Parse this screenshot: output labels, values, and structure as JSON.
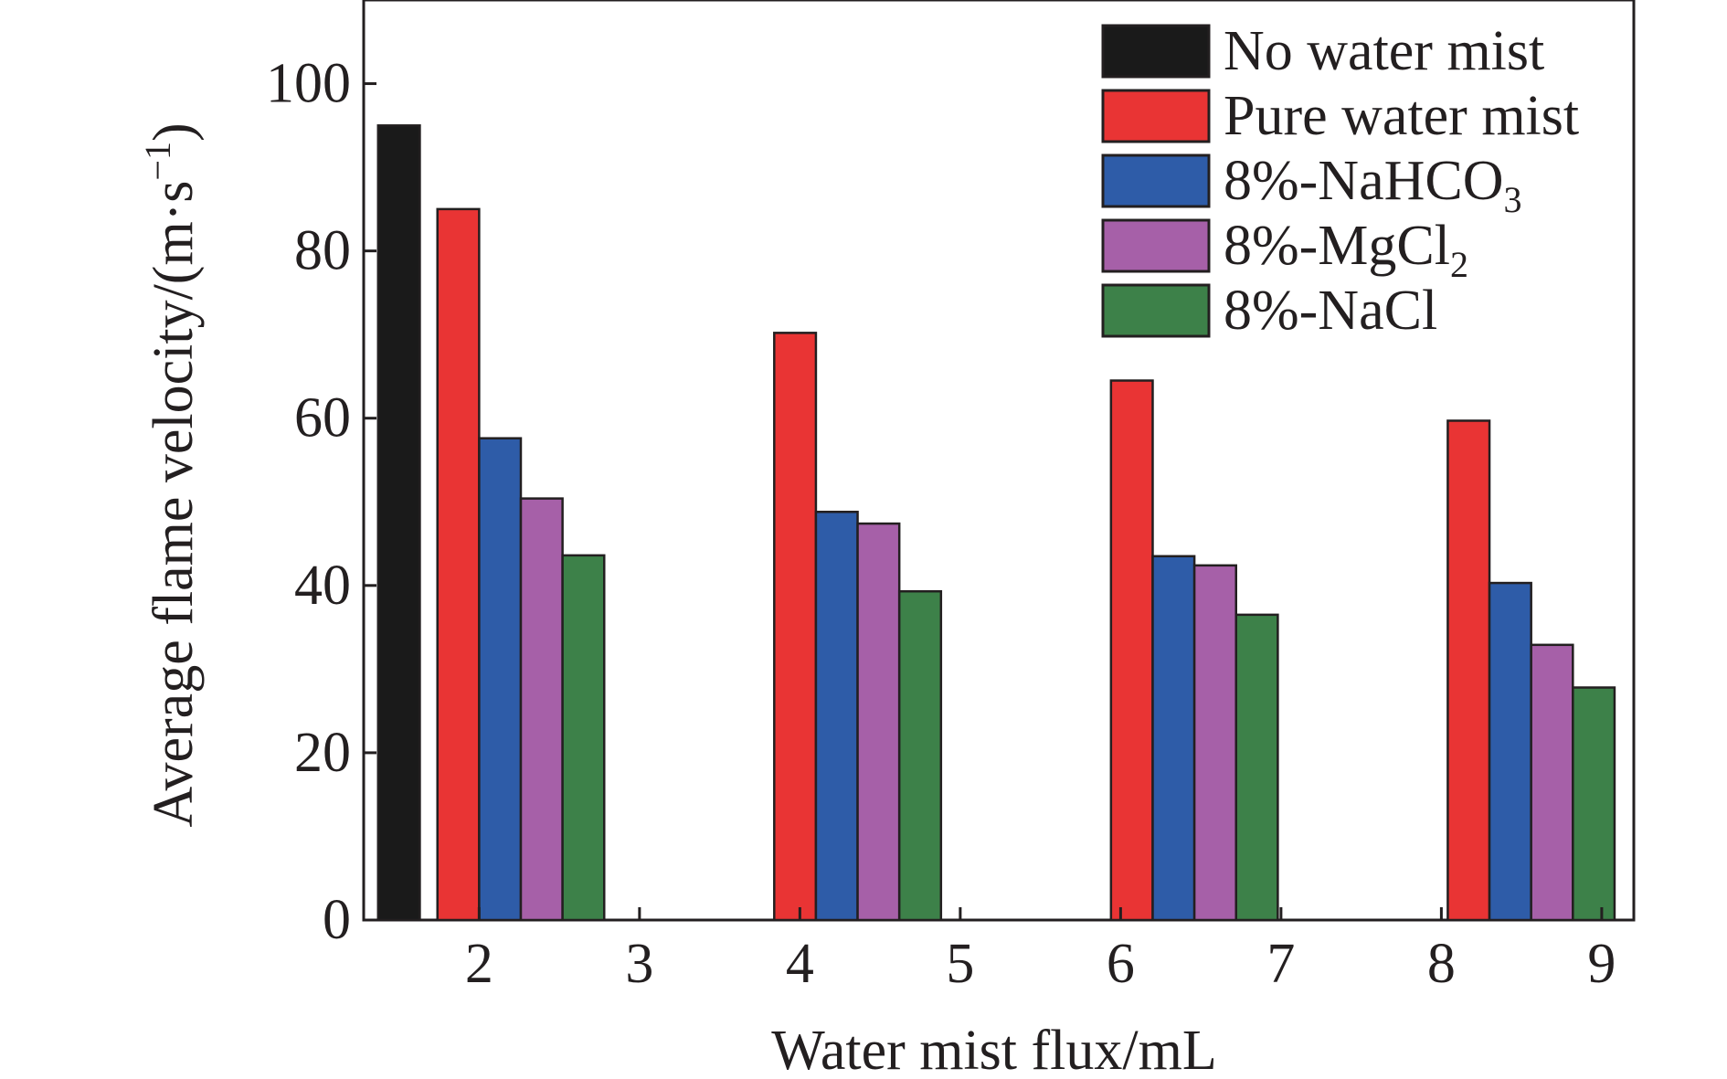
{
  "chart_data": {
    "type": "bar",
    "title": "",
    "xlabel": "Water mist flux/mL",
    "ylabel": "Average flame velocity/(m·s",
    "ylabel_superscript": "−1",
    "ylabel_close": ")",
    "ylim": [
      0,
      110
    ],
    "yticks": [
      0,
      20,
      40,
      60,
      80,
      100
    ],
    "xticks": [
      2,
      3,
      4,
      5,
      6,
      7,
      8,
      9
    ],
    "xlim": [
      1.28,
      9.2
    ],
    "grid": false,
    "legend_position": "top-right",
    "series": [
      {
        "name": "No water mist",
        "color": "#1a1a1a",
        "legend_sub": "",
        "points": [
          {
            "x": 1.5,
            "y": 95.0
          }
        ]
      },
      {
        "name": "Pure water mist",
        "color": "#e93434",
        "legend_sub": "",
        "points": [
          {
            "x": 1.87,
            "y": 85.0
          },
          {
            "x": 3.97,
            "y": 70.2
          },
          {
            "x": 6.07,
            "y": 64.5
          },
          {
            "x": 8.17,
            "y": 59.7
          }
        ]
      },
      {
        "name": "8%-NaHCO",
        "color": "#2e5ca8",
        "legend_sub": "3",
        "points": [
          {
            "x": 2.13,
            "y": 57.6
          },
          {
            "x": 4.23,
            "y": 48.8
          },
          {
            "x": 6.33,
            "y": 43.5
          },
          {
            "x": 8.43,
            "y": 40.3
          }
        ]
      },
      {
        "name": "8%-MgCl",
        "color": "#a660a8",
        "legend_sub": "2",
        "points": [
          {
            "x": 2.39,
            "y": 50.4
          },
          {
            "x": 4.49,
            "y": 47.4
          },
          {
            "x": 6.59,
            "y": 42.4
          },
          {
            "x": 8.69,
            "y": 32.9
          }
        ]
      },
      {
        "name": "8%-NaCl",
        "color": "#3d8149",
        "legend_sub": "",
        "points": [
          {
            "x": 2.65,
            "y": 43.6
          },
          {
            "x": 4.75,
            "y": 39.3
          },
          {
            "x": 6.85,
            "y": 36.5
          },
          {
            "x": 8.95,
            "y": 27.8
          }
        ]
      }
    ]
  }
}
